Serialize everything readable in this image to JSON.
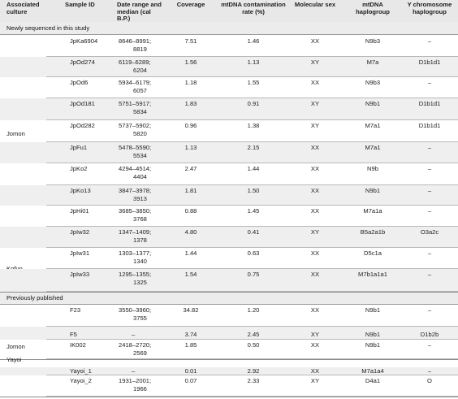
{
  "columns": [
    "Associated culture",
    "Sample ID",
    "Date range and median (cal B.P.)",
    "Coverage",
    "mtDNA contamination rate (%)",
    "Molecular sex",
    "mtDNA haplogroup",
    "Y chromosome haplogroup"
  ],
  "sections": [
    {
      "label": "Newly sequenced in this study"
    },
    {
      "label": "Previously published"
    }
  ],
  "groups": [
    {
      "label": "Jomon"
    },
    {
      "label": "Kofun"
    },
    {
      "label": "Jomon"
    },
    {
      "label": "Yayoi"
    }
  ],
  "rows": [
    {
      "id": "JpKa6904",
      "date_range": "8646–8991;",
      "median": "8819",
      "coverage": "7.51",
      "contam": "1.46",
      "sex": "XX",
      "mt": "N9b3",
      "y": "–"
    },
    {
      "id": "JpOd274",
      "date_range": "6119–6289;",
      "median": "6204",
      "coverage": "1.56",
      "contam": "1.13",
      "sex": "XY",
      "mt": "M7a",
      "y": "D1b1d1"
    },
    {
      "id": "JpOd6",
      "date_range": "5934–6179;",
      "median": "6057",
      "coverage": "1.18",
      "contam": "1.55",
      "sex": "XX",
      "mt": "N9b3",
      "y": "–"
    },
    {
      "id": "JpOd181",
      "date_range": "5751–5917;",
      "median": "5834",
      "coverage": "1.83",
      "contam": "0.91",
      "sex": "XY",
      "mt": "N9b1",
      "y": "D1b1d1"
    },
    {
      "id": "JpOd282",
      "date_range": "5737–5902;",
      "median": "5820",
      "coverage": "0.96",
      "contam": "1.38",
      "sex": "XY",
      "mt": "M7a1",
      "y": "D1b1d1"
    },
    {
      "id": "JpFu1",
      "date_range": "5478–5590;",
      "median": "5534",
      "coverage": "1.13",
      "contam": "2.15",
      "sex": "XX",
      "mt": "M7a1",
      "y": "–"
    },
    {
      "id": "JpKo2",
      "date_range": "4294–4514;",
      "median": "4404",
      "coverage": "2.47",
      "contam": "1.44",
      "sex": "XX",
      "mt": "N9b",
      "y": "–"
    },
    {
      "id": "JpKo13",
      "date_range": "3847–3978;",
      "median": "3913",
      "coverage": "1.81",
      "contam": "1.50",
      "sex": "XX",
      "mt": "N9b1",
      "y": "–"
    },
    {
      "id": "JpHi01",
      "date_range": "3685–3850;",
      "median": "3768",
      "coverage": "0.88",
      "contam": "1.45",
      "sex": "XX",
      "mt": "M7a1a",
      "y": "–"
    },
    {
      "id": "JpIw32",
      "date_range": "1347–1409;",
      "median": "1378",
      "coverage": "4.80",
      "contam": "0.41",
      "sex": "XY",
      "mt": "B5a2a1b",
      "y": "O3a2c"
    },
    {
      "id": "JpIw31",
      "date_range": "1303–1377;",
      "median": "1340",
      "coverage": "1.44",
      "contam": "0.63",
      "sex": "XX",
      "mt": "D5c1a",
      "y": "–"
    },
    {
      "id": "JpIw33",
      "date_range": "1295–1355;",
      "median": "1325",
      "coverage": "1.54",
      "contam": "0.75",
      "sex": "XX",
      "mt": "M7b1a1a1",
      "y": "–"
    },
    {
      "id": "F23",
      "date_range": "3550–3960;",
      "median": "3755",
      "coverage": "34.82",
      "contam": "1.20",
      "sex": "XX",
      "mt": "N9b1",
      "y": "–"
    },
    {
      "id": "F5",
      "date_range": "–",
      "median": "",
      "coverage": "3.74",
      "contam": "2.45",
      "sex": "XY",
      "mt": "N9b1",
      "y": "D1b2b"
    },
    {
      "id": "IK002",
      "date_range": "2418–2720;",
      "median": "2569",
      "coverage": "1.85",
      "contam": "0.50",
      "sex": "XX",
      "mt": "N9b1",
      "y": "–"
    },
    {
      "id": "Yayoi_1",
      "date_range": "–",
      "median": "",
      "coverage": "0.01",
      "contam": "2.92",
      "sex": "XX",
      "mt": "M7a1a4",
      "y": "–"
    },
    {
      "id": "Yayoi_2",
      "date_range": "1931–2001;",
      "median": "1966",
      "coverage": "0.07",
      "contam": "2.33",
      "sex": "XY",
      "mt": "D4a1",
      "y": "O"
    }
  ]
}
